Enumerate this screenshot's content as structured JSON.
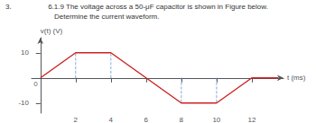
{
  "chart_data": {
    "type": "line",
    "title": "6.1.9 The voltage across a 50-μF capacitor is shown in Figure below.",
    "subtitle": "Determine the current waveform.",
    "xlabel": "t (ms)",
    "ylabel": "v(t) (V)",
    "x": [
      0,
      2,
      4,
      6,
      8,
      10,
      12,
      13.5
    ],
    "values": [
      0,
      10,
      10,
      0,
      -10,
      -10,
      0,
      0
    ],
    "color": "#cc2222",
    "xlim": [
      -0.5,
      13.8
    ],
    "ylim": [
      -14,
      16
    ],
    "xticks": [
      2,
      4,
      6,
      8,
      10,
      12
    ],
    "yticks": [
      -10,
      10
    ],
    "grid": false,
    "guides": {
      "x": [
        2,
        4,
        8,
        10
      ],
      "y": [
        10,
        10,
        -10,
        -10
      ],
      "color": "#6699cc",
      "line_style": "dashed"
    },
    "annotations": [
      {
        "text": "3."
      },
      {
        "text": "0",
        "x": 0,
        "y": 0
      }
    ]
  }
}
